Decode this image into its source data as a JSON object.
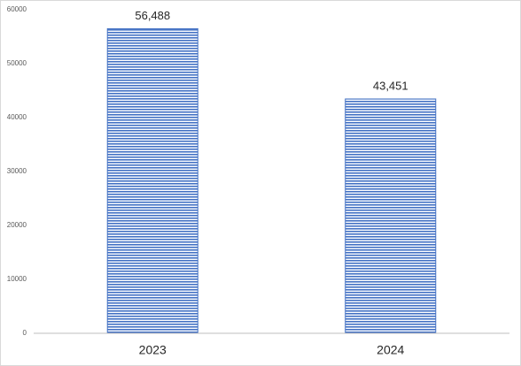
{
  "chart_data": {
    "type": "bar",
    "categories": [
      "2023",
      "2024"
    ],
    "values": [
      56488,
      43451
    ],
    "value_labels": [
      "56,488",
      "43,451"
    ],
    "color": "#4472c4",
    "ylim": [
      0,
      60000
    ],
    "yticks": [
      0,
      10000,
      20000,
      30000,
      40000,
      50000,
      60000
    ],
    "grid": false
  }
}
